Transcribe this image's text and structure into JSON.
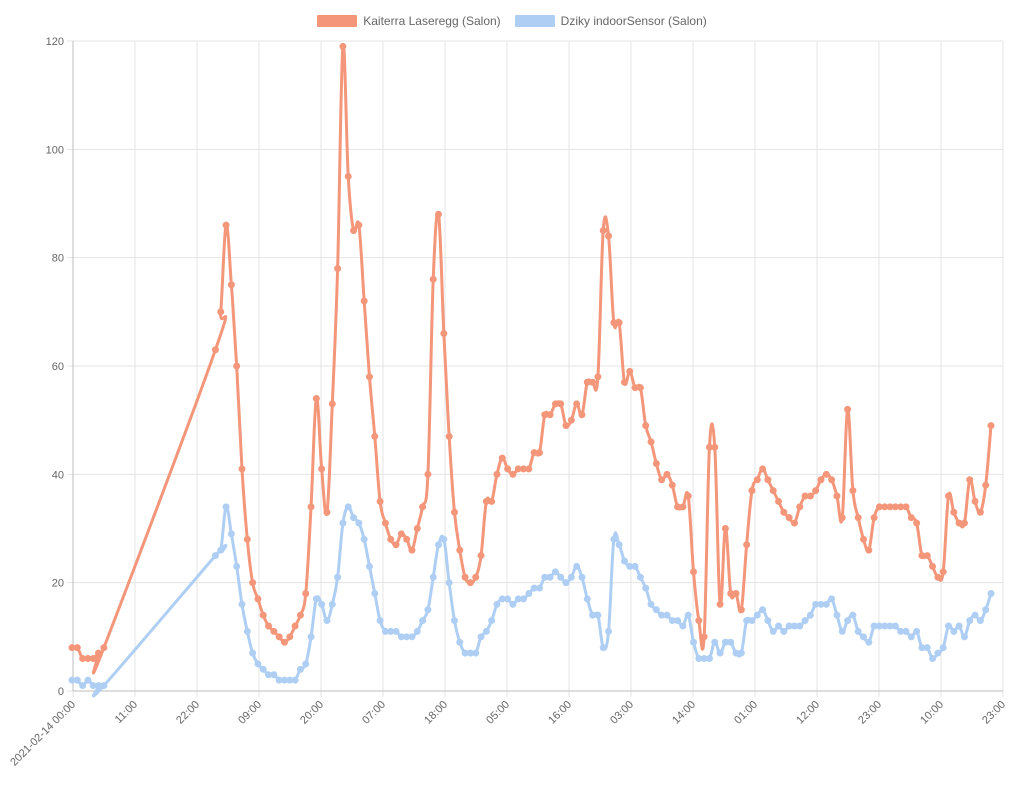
{
  "chart_data": {
    "type": "line",
    "title": "",
    "xlabel": "",
    "ylabel": "",
    "ylim": [
      0,
      120
    ],
    "yticks": [
      0,
      20,
      40,
      60,
      80,
      100,
      120
    ],
    "xticks": [
      "2021-02-14 00:00",
      "11:00",
      "22:00",
      "09:00",
      "20:00",
      "07:00",
      "18:00",
      "05:00",
      "16:00",
      "03:00",
      "14:00",
      "01:00",
      "12:00",
      "23:00",
      "10:00",
      "23:00"
    ],
    "grid": true,
    "legend_position": "top-center",
    "series": [
      {
        "name": "Kaiterra Laseregg (Salon)",
        "color": "#f4967a",
        "values": [
          8,
          8,
          6,
          6,
          6,
          7,
          8,
          63,
          70,
          86,
          75,
          60,
          41,
          28,
          20,
          17,
          14,
          12,
          11,
          10,
          9,
          10,
          12,
          14,
          18,
          34,
          54,
          41,
          33,
          53,
          78,
          119,
          95,
          85,
          86,
          72,
          58,
          47,
          35,
          31,
          28,
          27,
          29,
          28,
          26,
          30,
          34,
          40,
          76,
          88,
          66,
          47,
          33,
          26,
          21,
          20,
          21,
          25,
          35,
          35,
          40,
          43,
          41,
          40,
          41,
          41,
          41,
          44,
          44,
          51,
          51,
          53,
          53,
          49,
          50,
          53,
          51,
          57,
          57,
          58,
          85,
          84,
          68,
          68,
          57,
          59,
          56,
          56,
          49,
          46,
          42,
          39,
          40,
          38,
          34,
          34,
          36,
          22,
          13,
          10,
          45,
          45,
          16,
          30,
          18,
          18,
          15,
          27,
          37,
          39,
          41,
          39,
          37,
          35,
          33,
          32,
          31,
          34,
          36,
          36,
          37,
          39,
          40,
          39,
          36,
          32,
          52,
          37,
          32,
          28,
          26,
          32,
          34,
          34,
          34,
          34,
          34,
          34,
          32,
          31,
          25,
          25,
          23,
          21,
          22,
          36,
          33,
          31,
          31,
          39,
          35,
          33,
          38,
          49
        ]
      },
      {
        "name": "Dziky indoorSensor (Salon)",
        "color": "#aecff3",
        "values": [
          2,
          2,
          1,
          2,
          1,
          1,
          1,
          25,
          26,
          34,
          29,
          23,
          16,
          11,
          7,
          5,
          4,
          3,
          3,
          2,
          2,
          2,
          2,
          4,
          5,
          10,
          17,
          16,
          13,
          16,
          21,
          31,
          34,
          32,
          31,
          28,
          23,
          18,
          13,
          11,
          11,
          11,
          10,
          10,
          10,
          11,
          13,
          15,
          21,
          27,
          28,
          20,
          13,
          9,
          7,
          7,
          7,
          10,
          11,
          13,
          16,
          17,
          17,
          16,
          17,
          17,
          18,
          19,
          19,
          21,
          21,
          22,
          21,
          20,
          21,
          23,
          21,
          17,
          14,
          14,
          8,
          11,
          28,
          27,
          24,
          23,
          23,
          21,
          19,
          16,
          15,
          14,
          14,
          13,
          13,
          12,
          14,
          9,
          6,
          6,
          6,
          9,
          7,
          9,
          9,
          7,
          7,
          13,
          13,
          14,
          15,
          13,
          11,
          12,
          11,
          12,
          12,
          12,
          13,
          14,
          16,
          16,
          16,
          17,
          14,
          11,
          13,
          14,
          11,
          10,
          9,
          12,
          12,
          12,
          12,
          12,
          11,
          11,
          10,
          11,
          8,
          8,
          6,
          7,
          8,
          12,
          11,
          12,
          10,
          13,
          14,
          13,
          15,
          18
        ]
      }
    ]
  }
}
